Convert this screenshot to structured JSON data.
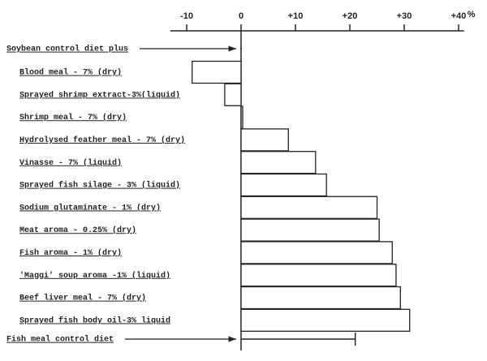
{
  "chart_data": {
    "type": "bar",
    "orientation": "horizontal",
    "x_unit": "%",
    "categories": [
      "Blood meal - 7% (dry)",
      "Sprayed shrimp extract-3%(liquid)",
      "Shrimp meal - 7% (dry)",
      "Hydrolysed feather meal - 7% (dry)",
      "Vinasse - 7% (liquid)",
      "Sprayed fish silage - 3% (liquid)",
      "Sodium glutaminate - 1% (dry)",
      "Meat aroma - 0.25% (dry)",
      "Fish aroma - 1% (dry)",
      "'Maggi' soup aroma -1% (liquid)",
      "Beef liver meal - 7% (dry)",
      "Sprayed fish body oil-3% liquid"
    ],
    "values": [
      -9,
      -3,
      0.3,
      8.7,
      13.7,
      15.7,
      25,
      25.4,
      27.8,
      28.5,
      29.3,
      31
    ],
    "color": "#ffffff",
    "references": [
      {
        "label": "Soybean control diet plus",
        "value": 0
      },
      {
        "label": "Fish meal control diet",
        "value": 21
      }
    ],
    "xlim": [
      -13,
      41
    ],
    "xticks": [
      -10,
      0,
      {
        "value": 10,
        "label": "+10"
      },
      {
        "value": 20,
        "label": "+20"
      },
      {
        "value": 30,
        "label": "+30"
      },
      {
        "value": 40,
        "label": "+40"
      }
    ]
  }
}
